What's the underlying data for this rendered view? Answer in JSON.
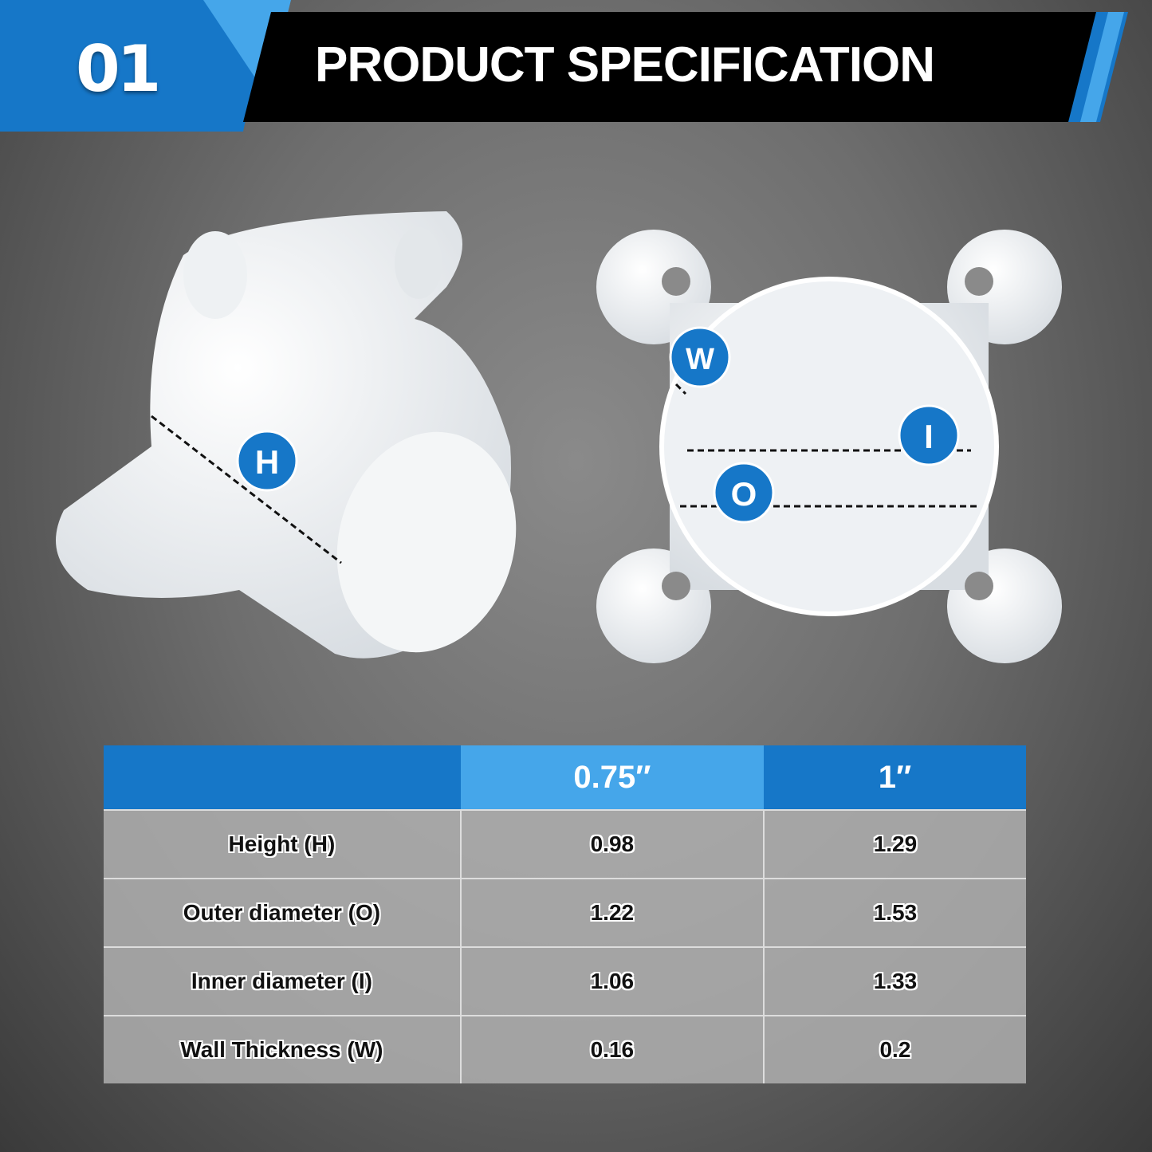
{
  "header": {
    "number": "01",
    "title": "PRODUCT SPECIFICATION"
  },
  "colors": {
    "primary_blue": "#1677c8",
    "light_blue": "#45a6ea",
    "header_bar": "#000000"
  },
  "markers": {
    "height": "H",
    "wall": "W",
    "inner": "I",
    "outer": "O"
  },
  "table": {
    "columns": [
      "",
      "0.75″",
      "1″"
    ],
    "rows": [
      {
        "label": "Height (H)",
        "values": [
          "0.98",
          "1.29"
        ]
      },
      {
        "label": "Outer diameter (O)",
        "values": [
          "1.22",
          "1.53"
        ]
      },
      {
        "label": "Inner diameter (I)",
        "values": [
          "1.06",
          "1.33"
        ]
      },
      {
        "label": "Wall Thickness (W)",
        "values": [
          "0.16",
          "0.2"
        ]
      }
    ]
  }
}
